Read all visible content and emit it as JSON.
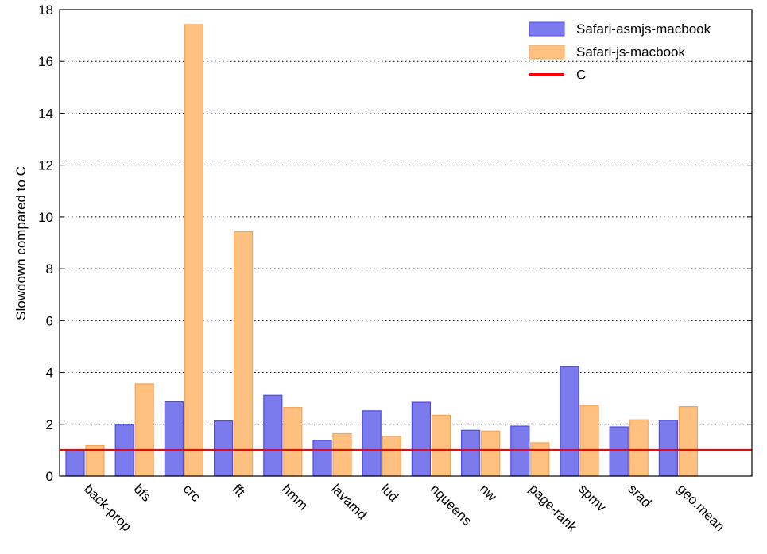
{
  "chart_data": {
    "type": "bar",
    "title": "",
    "xlabel": "",
    "ylabel": "Slowdown compared to C",
    "ylim": [
      0,
      18
    ],
    "yticks": [
      "0",
      "2",
      "4",
      "6",
      "8",
      "10",
      "12",
      "14",
      "16",
      "18"
    ],
    "grid": "horizontal dotted",
    "legend_position": "top-right",
    "categories": [
      "back-prop",
      "bfs",
      "crc",
      "fft",
      "hmm",
      "lavamd",
      "lud",
      "nqueens",
      "nw",
      "page-rank",
      "spmv",
      "srad",
      "geo.mean"
    ],
    "series": [
      {
        "name": "Safari-asmjs-macbook",
        "color": "#7b7bee",
        "edge": "#4c4ce8",
        "values": [
          1.0,
          1.97,
          2.87,
          2.13,
          3.12,
          1.38,
          2.52,
          2.85,
          1.77,
          1.93,
          4.22,
          1.9,
          2.15
        ]
      },
      {
        "name": "Safari-js-macbook",
        "color": "#ffc080",
        "edge": "#f5a55a",
        "values": [
          1.18,
          3.56,
          17.42,
          9.43,
          2.65,
          1.64,
          1.53,
          2.35,
          1.74,
          1.29,
          2.72,
          2.17,
          2.68
        ]
      }
    ],
    "reference_line": {
      "name": "C",
      "value": 1.0,
      "color": "#ff0000"
    }
  }
}
